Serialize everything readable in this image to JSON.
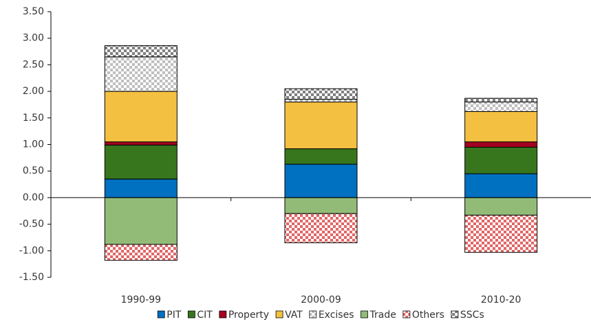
{
  "chart_data": {
    "type": "stacked_bar",
    "categories": [
      "1990-99",
      "2000-09",
      "2010-20"
    ],
    "series": [
      {
        "name": "PIT",
        "color": "#0070c0",
        "values": [
          0.35,
          0.63,
          0.45
        ]
      },
      {
        "name": "CIT",
        "color": "#38761d",
        "values": [
          0.64,
          0.29,
          0.5
        ]
      },
      {
        "name": "Property",
        "color": "#a50021",
        "values": [
          0.06,
          0,
          0.1
        ]
      },
      {
        "name": "VAT",
        "color": "#f4c042",
        "values": [
          0.95,
          0.88,
          0.57
        ]
      },
      {
        "name": "Excises",
        "color": "#bfbfbf",
        "pattern": "checker",
        "values": [
          0.65,
          0.05,
          0.18
        ]
      },
      {
        "name": "Trade",
        "color": "#93bb78",
        "values": [
          -0.88,
          -0.3,
          -0.33
        ]
      },
      {
        "name": "Others",
        "color": "#e06666",
        "pattern": "checker",
        "values": [
          -0.3,
          -0.55,
          -0.7
        ]
      },
      {
        "name": "SSCs",
        "color": "#7f7f7f",
        "pattern": "checker",
        "values": [
          0.21,
          0.2,
          0.07
        ]
      }
    ],
    "ylim": [
      -1.5,
      3.5
    ],
    "yticks": [
      {
        "value": -1.5,
        "label": "-1.50"
      },
      {
        "value": -1,
        "label": "-1.00"
      },
      {
        "value": -0.5,
        "label": "-0.50"
      },
      {
        "value": 0,
        "label": "0.00"
      },
      {
        "value": 0.5,
        "label": "0.50"
      },
      {
        "value": 1,
        "label": "1.00"
      },
      {
        "value": 1.5,
        "label": "1.50"
      },
      {
        "value": 2,
        "label": "2.00"
      },
      {
        "value": 2.5,
        "label": "2.50"
      },
      {
        "value": 3,
        "label": "3.00"
      },
      {
        "value": 3.5,
        "label": "3.50"
      }
    ],
    "legend": "bottom"
  }
}
